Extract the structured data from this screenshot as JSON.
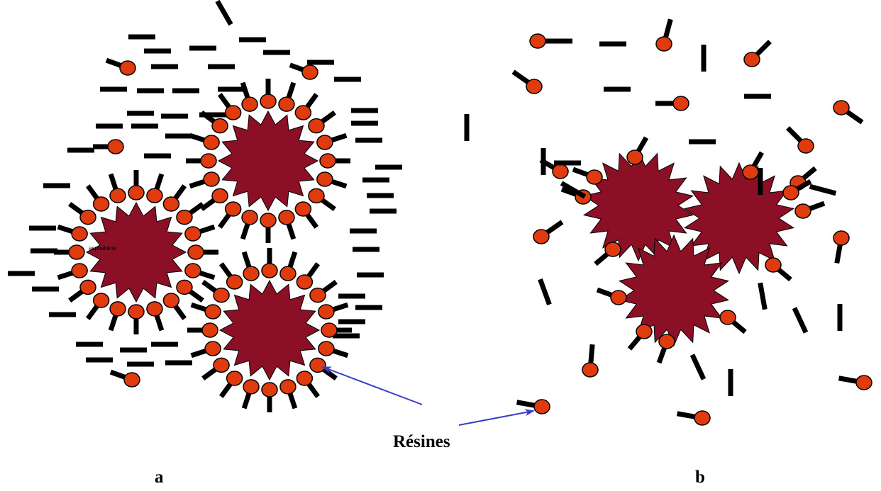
{
  "labels": {
    "resines": "Résines",
    "panel_a": "a",
    "panel_b": "b",
    "asphaltene": "asphaltène"
  },
  "colors": {
    "asphaltene_fill": "#8b0f25",
    "resin_fill": "#e03a0f",
    "saturate_fill": "#000000",
    "arrow": "#3a3acc"
  }
}
